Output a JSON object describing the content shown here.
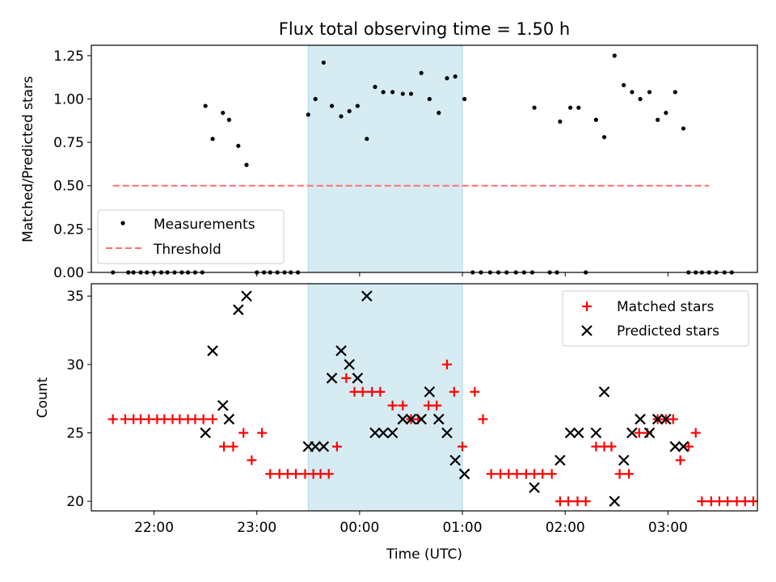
{
  "title": "Flux total observing time = 1.50 h",
  "colors": {
    "shade": "#add8e6",
    "threshold": "#ff6f6f",
    "matched": "#ff0000",
    "predicted": "#000000",
    "measure": "#000000"
  },
  "chart_data": [
    {
      "type": "scatter",
      "title": "Flux total observing time = 1.50 h",
      "xlabel": "",
      "ylabel": "Matched/Predicted stars",
      "ylim": [
        0,
        1.31
      ],
      "yticks": [
        "0.00",
        "0.25",
        "0.50",
        "0.75",
        "1.00",
        "1.25"
      ],
      "xlim_hours": [
        21.39,
        27.87
      ],
      "shaded_span_hours": [
        23.5,
        25.0
      ],
      "legend": {
        "placement": "lower-left",
        "entries": [
          "Measurements",
          "Threshold"
        ]
      },
      "threshold": {
        "name": "Threshold",
        "value": 0.5,
        "x_range_hours": [
          21.6,
          27.4
        ]
      },
      "measurements": {
        "name": "Measurements",
        "points": [
          [
            21.6,
            0
          ],
          [
            21.75,
            0
          ],
          [
            21.8,
            0
          ],
          [
            21.87,
            0
          ],
          [
            21.93,
            0
          ],
          [
            22.0,
            0
          ],
          [
            22.07,
            0
          ],
          [
            22.13,
            0
          ],
          [
            22.2,
            0
          ],
          [
            22.27,
            0
          ],
          [
            22.33,
            0
          ],
          [
            22.4,
            0
          ],
          [
            22.47,
            0
          ],
          [
            22.5,
            0.96
          ],
          [
            22.57,
            0.77
          ],
          [
            22.67,
            0.92
          ],
          [
            22.73,
            0.88
          ],
          [
            22.82,
            0.73
          ],
          [
            22.9,
            0.62
          ],
          [
            23.0,
            0
          ],
          [
            23.07,
            0
          ],
          [
            23.13,
            0
          ],
          [
            23.2,
            0
          ],
          [
            23.27,
            0
          ],
          [
            23.33,
            0
          ],
          [
            23.4,
            0
          ],
          [
            23.5,
            0.91
          ],
          [
            23.57,
            1.0
          ],
          [
            23.65,
            1.21
          ],
          [
            23.73,
            0.96
          ],
          [
            23.82,
            0.9
          ],
          [
            23.9,
            0.93
          ],
          [
            23.98,
            0.96
          ],
          [
            24.07,
            0.77
          ],
          [
            24.15,
            1.07
          ],
          [
            24.23,
            1.04
          ],
          [
            24.32,
            1.04
          ],
          [
            24.42,
            1.03
          ],
          [
            24.5,
            1.03
          ],
          [
            24.6,
            1.15
          ],
          [
            24.68,
            1.0
          ],
          [
            24.77,
            0.92
          ],
          [
            24.85,
            1.12
          ],
          [
            24.93,
            1.13
          ],
          [
            25.02,
            1.0
          ],
          [
            25.1,
            0
          ],
          [
            25.18,
            0
          ],
          [
            25.27,
            0
          ],
          [
            25.35,
            0
          ],
          [
            25.43,
            0
          ],
          [
            25.52,
            0
          ],
          [
            25.6,
            0
          ],
          [
            25.68,
            0
          ],
          [
            25.7,
            0.95
          ],
          [
            25.85,
            0
          ],
          [
            25.92,
            0
          ],
          [
            25.95,
            0.87
          ],
          [
            26.05,
            0.95
          ],
          [
            26.13,
            0.95
          ],
          [
            26.2,
            0
          ],
          [
            26.3,
            0.88
          ],
          [
            26.38,
            0.78
          ],
          [
            26.48,
            1.25
          ],
          [
            26.57,
            1.08
          ],
          [
            26.65,
            1.04
          ],
          [
            26.73,
            1.0
          ],
          [
            26.82,
            1.04
          ],
          [
            26.9,
            0.88
          ],
          [
            26.98,
            0.92
          ],
          [
            27.07,
            1.04
          ],
          [
            27.15,
            0.83
          ],
          [
            27.2,
            0
          ],
          [
            27.27,
            0
          ],
          [
            27.33,
            0
          ],
          [
            27.4,
            0
          ],
          [
            27.47,
            0
          ],
          [
            27.55,
            0
          ],
          [
            27.62,
            0
          ]
        ]
      }
    },
    {
      "type": "scatter",
      "xlabel": "Time (UTC)",
      "ylabel": "Count",
      "ylim": [
        19.3,
        35.9
      ],
      "yticks": [
        "20",
        "25",
        "30",
        "35"
      ],
      "xticks": [
        "22:00",
        "23:00",
        "00:00",
        "01:00",
        "02:00",
        "03:00"
      ],
      "xticks_hours": [
        22,
        23,
        24,
        25,
        26,
        27
      ],
      "xlim_hours": [
        21.39,
        27.87
      ],
      "shaded_span_hours": [
        23.5,
        25.0
      ],
      "legend": {
        "placement": "upper-right",
        "entries": [
          "Matched stars",
          "Predicted stars"
        ]
      },
      "series": [
        {
          "name": "Matched stars",
          "marker": "plus",
          "points": [
            [
              21.6,
              26
            ],
            [
              21.72,
              26
            ],
            [
              21.8,
              26
            ],
            [
              21.87,
              26
            ],
            [
              21.95,
              26
            ],
            [
              22.03,
              26
            ],
            [
              22.1,
              26
            ],
            [
              22.18,
              26
            ],
            [
              22.25,
              26
            ],
            [
              22.33,
              26
            ],
            [
              22.4,
              26
            ],
            [
              22.48,
              26
            ],
            [
              22.57,
              26
            ],
            [
              22.68,
              24
            ],
            [
              22.77,
              24
            ],
            [
              22.87,
              25
            ],
            [
              22.95,
              23
            ],
            [
              23.05,
              25
            ],
            [
              23.13,
              22
            ],
            [
              23.22,
              22
            ],
            [
              23.3,
              22
            ],
            [
              23.38,
              22
            ],
            [
              23.47,
              22
            ],
            [
              23.55,
              22
            ],
            [
              23.62,
              22
            ],
            [
              23.7,
              22
            ],
            [
              23.78,
              24
            ],
            [
              23.87,
              29
            ],
            [
              23.95,
              28
            ],
            [
              24.03,
              28
            ],
            [
              24.12,
              28
            ],
            [
              24.2,
              28
            ],
            [
              24.32,
              27
            ],
            [
              24.42,
              27
            ],
            [
              24.5,
              26
            ],
            [
              24.57,
              26
            ],
            [
              24.67,
              27
            ],
            [
              24.75,
              27
            ],
            [
              24.85,
              30
            ],
            [
              24.92,
              28
            ],
            [
              25.0,
              24
            ],
            [
              25.12,
              28
            ],
            [
              25.2,
              26
            ],
            [
              25.28,
              22
            ],
            [
              25.37,
              22
            ],
            [
              25.45,
              22
            ],
            [
              25.53,
              22
            ],
            [
              25.62,
              22
            ],
            [
              25.7,
              22
            ],
            [
              25.78,
              22
            ],
            [
              25.87,
              22
            ],
            [
              25.95,
              20
            ],
            [
              26.03,
              20
            ],
            [
              26.12,
              20
            ],
            [
              26.2,
              20
            ],
            [
              26.3,
              24
            ],
            [
              26.38,
              24
            ],
            [
              26.45,
              24
            ],
            [
              26.53,
              22
            ],
            [
              26.62,
              22
            ],
            [
              26.72,
              25
            ],
            [
              26.8,
              25
            ],
            [
              26.9,
              26
            ],
            [
              26.98,
              26
            ],
            [
              27.05,
              26
            ],
            [
              27.12,
              23
            ],
            [
              27.2,
              24
            ],
            [
              27.27,
              25
            ],
            [
              27.33,
              20
            ],
            [
              27.42,
              20
            ],
            [
              27.5,
              20
            ],
            [
              27.58,
              20
            ],
            [
              27.67,
              20
            ],
            [
              27.75,
              20
            ],
            [
              27.83,
              20
            ]
          ]
        },
        {
          "name": "Predicted stars",
          "marker": "x",
          "points": [
            [
              22.5,
              25
            ],
            [
              22.57,
              31
            ],
            [
              22.67,
              27
            ],
            [
              22.73,
              26
            ],
            [
              22.82,
              34
            ],
            [
              22.9,
              35
            ],
            [
              23.5,
              24
            ],
            [
              23.57,
              24
            ],
            [
              23.65,
              24
            ],
            [
              23.73,
              29
            ],
            [
              23.82,
              31
            ],
            [
              23.9,
              30
            ],
            [
              23.98,
              29
            ],
            [
              24.07,
              35
            ],
            [
              24.15,
              25
            ],
            [
              24.23,
              25
            ],
            [
              24.32,
              25
            ],
            [
              24.42,
              26
            ],
            [
              24.5,
              26
            ],
            [
              24.6,
              26
            ],
            [
              24.68,
              28
            ],
            [
              24.77,
              26
            ],
            [
              24.85,
              25
            ],
            [
              24.93,
              23
            ],
            [
              25.02,
              22
            ],
            [
              25.7,
              21
            ],
            [
              25.95,
              23
            ],
            [
              26.05,
              25
            ],
            [
              26.13,
              25
            ],
            [
              26.3,
              25
            ],
            [
              26.38,
              28
            ],
            [
              26.48,
              20
            ],
            [
              26.57,
              23
            ],
            [
              26.65,
              25
            ],
            [
              26.73,
              26
            ],
            [
              26.82,
              25
            ],
            [
              26.9,
              26
            ],
            [
              26.98,
              26
            ],
            [
              27.07,
              24
            ],
            [
              27.15,
              24
            ]
          ]
        }
      ]
    }
  ]
}
